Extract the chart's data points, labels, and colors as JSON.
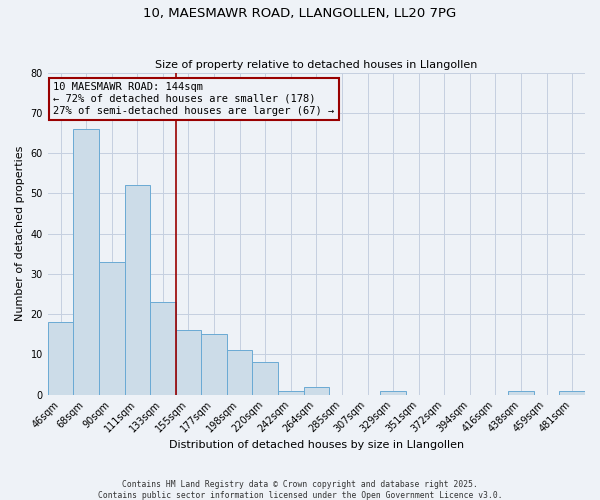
{
  "title_line1": "10, MAESMAWR ROAD, LLANGOLLEN, LL20 7PG",
  "title_line2": "Size of property relative to detached houses in Llangollen",
  "xlabel": "Distribution of detached houses by size in Llangollen",
  "ylabel": "Number of detached properties",
  "categories": [
    "46sqm",
    "68sqm",
    "90sqm",
    "111sqm",
    "133sqm",
    "155sqm",
    "177sqm",
    "198sqm",
    "220sqm",
    "242sqm",
    "264sqm",
    "285sqm",
    "307sqm",
    "329sqm",
    "351sqm",
    "372sqm",
    "394sqm",
    "416sqm",
    "438sqm",
    "459sqm",
    "481sqm"
  ],
  "values": [
    18,
    66,
    33,
    52,
    23,
    16,
    15,
    11,
    8,
    1,
    2,
    0,
    0,
    1,
    0,
    0,
    0,
    0,
    1,
    0,
    1
  ],
  "bar_color": "#ccdce8",
  "bar_edge_color": "#6aaad4",
  "subject_line_color": "#990000",
  "annotation_text": "10 MAESMAWR ROAD: 144sqm\n← 72% of detached houses are smaller (178)\n27% of semi-detached houses are larger (67) →",
  "ylim": [
    0,
    80
  ],
  "yticks": [
    0,
    10,
    20,
    30,
    40,
    50,
    60,
    70,
    80
  ],
  "footer_line1": "Contains HM Land Registry data © Crown copyright and database right 2025.",
  "footer_line2": "Contains public sector information licensed under the Open Government Licence v3.0.",
  "bg_color": "#eef2f7",
  "grid_color": "#c5cfe0"
}
